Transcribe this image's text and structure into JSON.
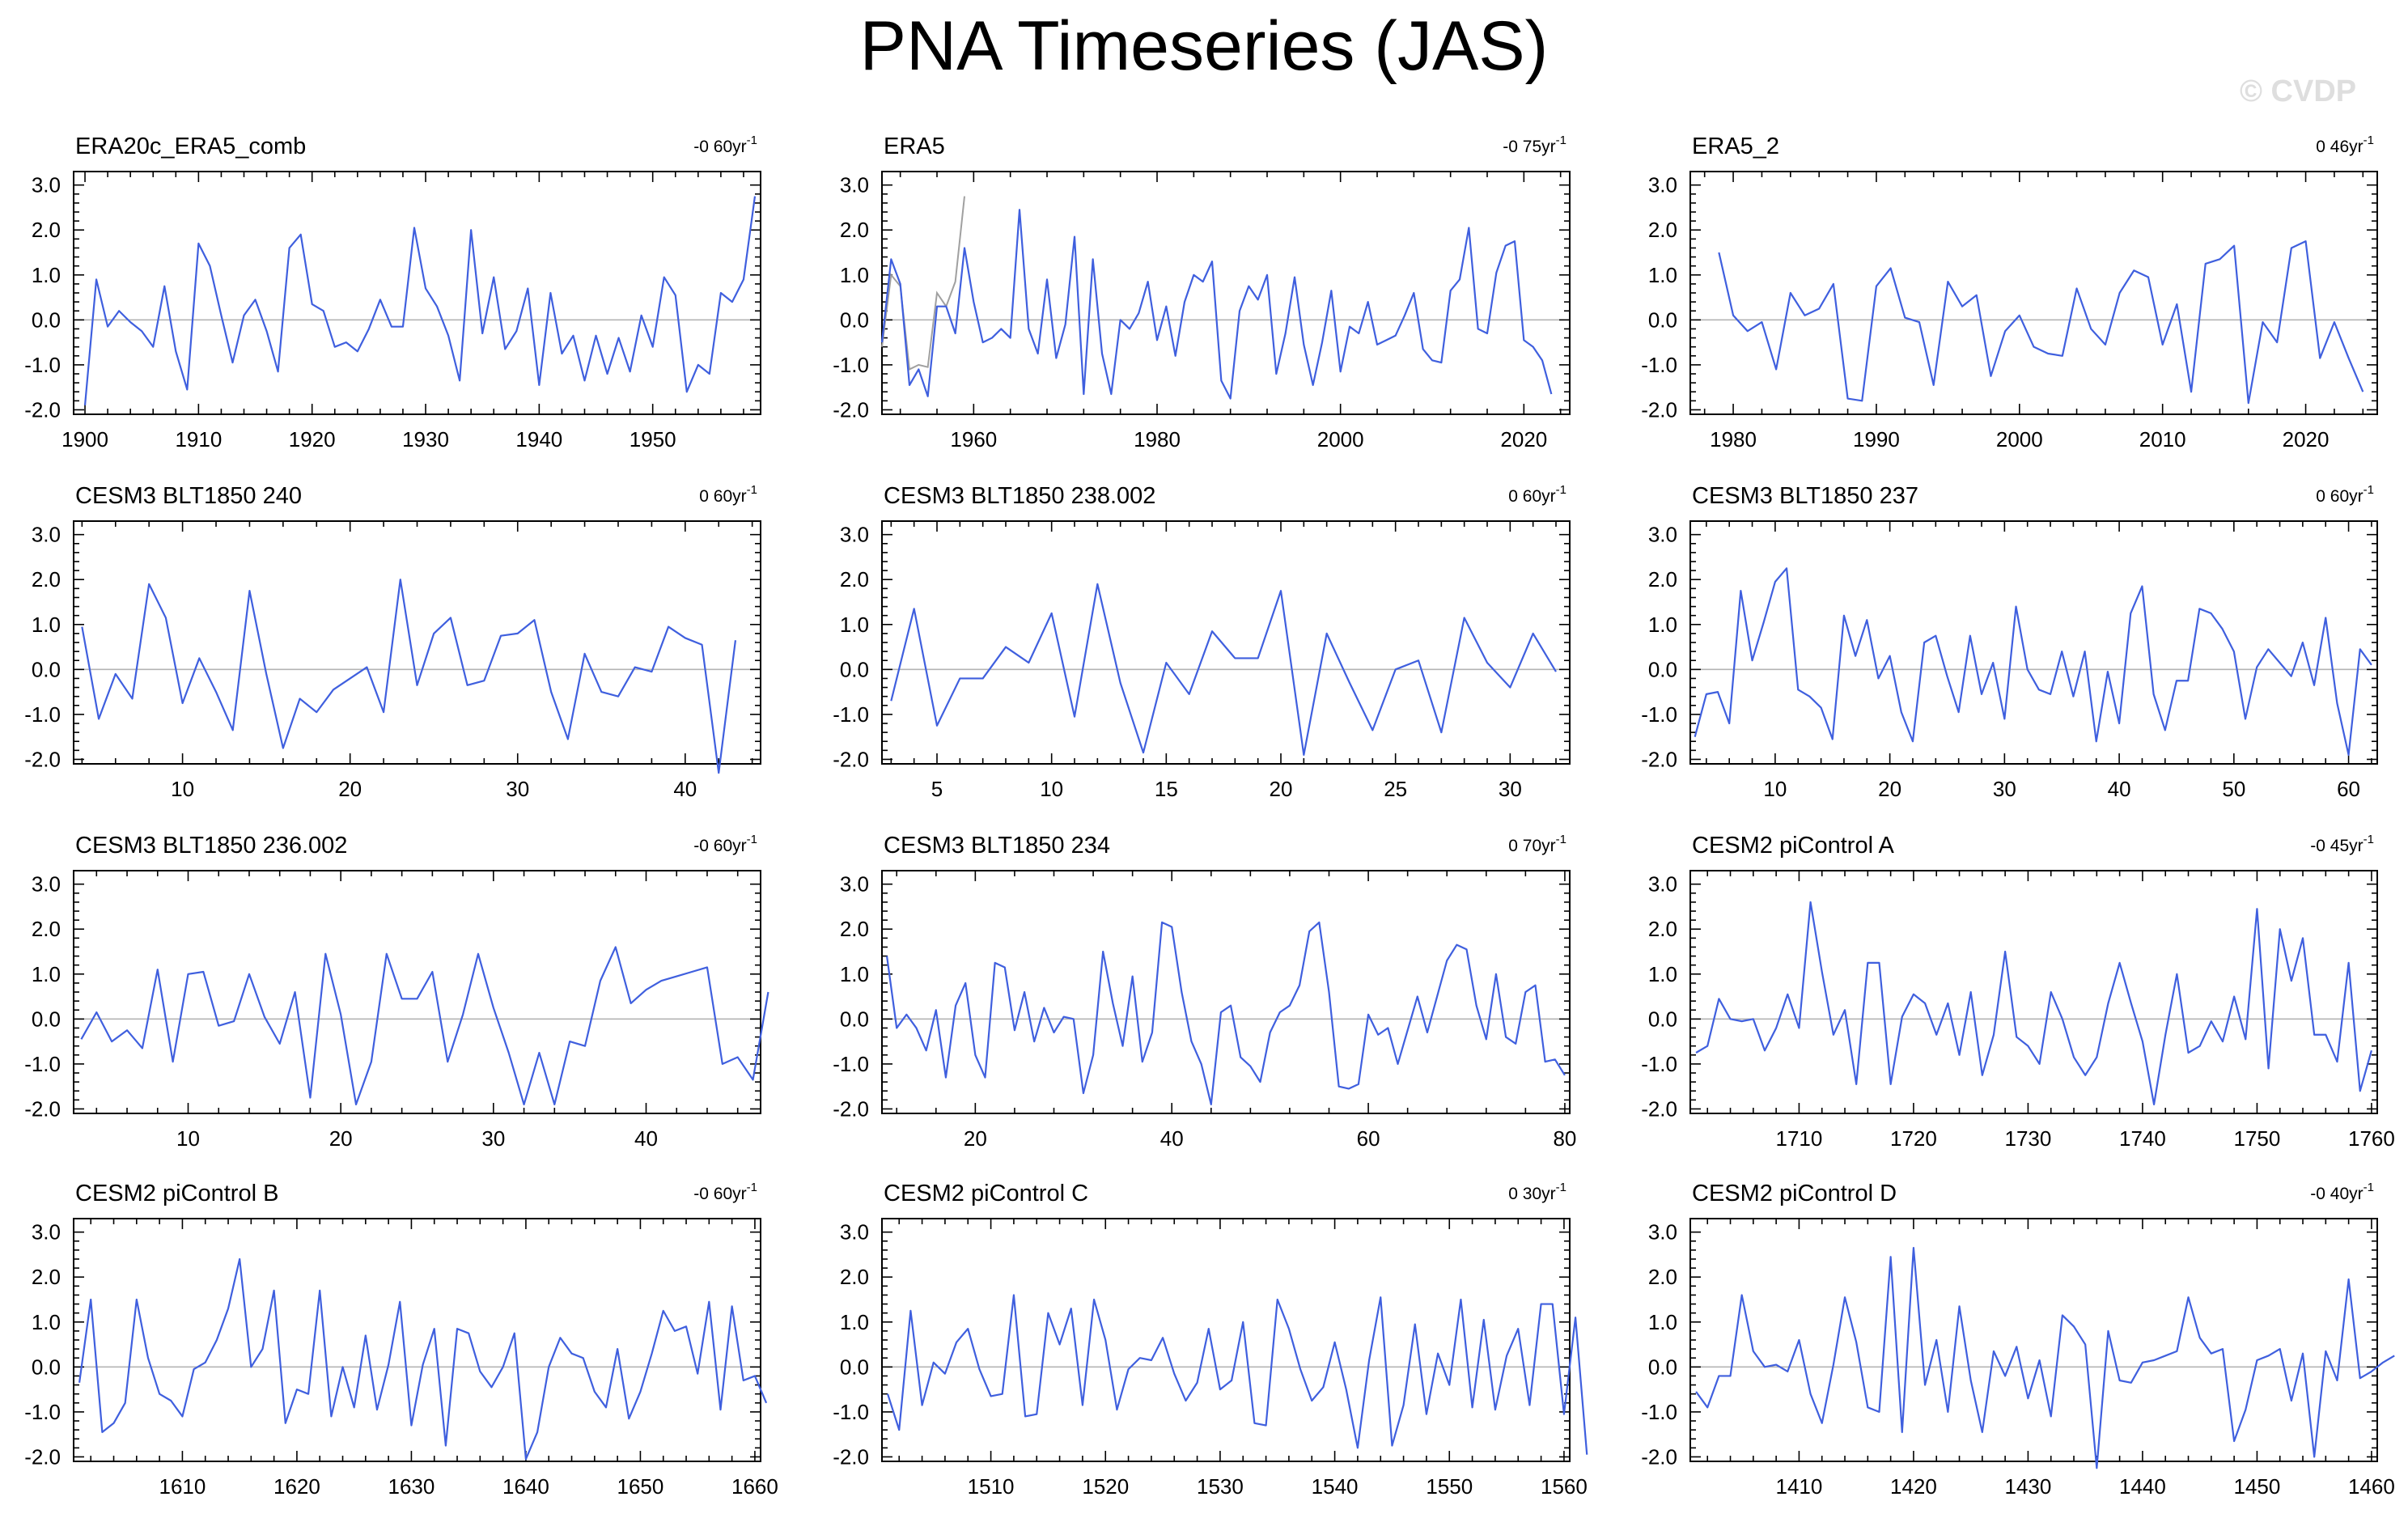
{
  "title": "PNA Timeseries (JAS)",
  "watermark": "© CVDP",
  "colors": {
    "line": "#3f5fde",
    "obs_gray": "#a0a0a0",
    "zero_line": "#b4b4b4",
    "axes": "#000000"
  },
  "chart_data": [
    {
      "type": "line",
      "title": "ERA20c_ERA5_comb",
      "trend": "-0 60yr",
      "trend_sup": "-1",
      "xticks": [
        1900,
        1910,
        1920,
        1930,
        1940,
        1950
      ],
      "xlim": [
        1899,
        1959.5
      ],
      "ylim": [
        -2.1,
        3.3
      ],
      "yticks": [
        "3.0",
        "2.0",
        "1.0",
        "0.0",
        "-1.0",
        "-2.0"
      ],
      "x_start": 1900,
      "values": [
        -1.9,
        0.9,
        -0.15,
        0.2,
        -0.05,
        -0.25,
        -0.6,
        0.75,
        -0.7,
        -1.55,
        1.7,
        1.2,
        0.1,
        -0.95,
        0.1,
        0.45,
        -0.25,
        -1.15,
        1.6,
        1.9,
        0.35,
        0.2,
        -0.6,
        -0.5,
        -0.7,
        -0.2,
        0.45,
        -0.15,
        -0.15,
        2.05,
        0.7,
        0.3,
        -0.35,
        -1.35,
        2.0,
        -0.3,
        0.95,
        -0.65,
        -0.25,
        0.7,
        -1.45,
        0.6,
        -0.75,
        -0.35,
        -1.35,
        -0.35,
        -1.2,
        -0.4,
        -1.15,
        0.1,
        -0.6,
        0.95,
        0.55,
        -1.6,
        -1.0,
        -1.2,
        0.6,
        0.4,
        0.9,
        2.75
      ]
    },
    {
      "type": "line",
      "title": "ERA5",
      "trend": "-0 75yr",
      "trend_sup": "-1",
      "xticks": [
        1960,
        1980,
        2000,
        2020
      ],
      "xlim": [
        1950,
        2025
      ],
      "ylim": [
        -2.1,
        3.3
      ],
      "yticks": [
        "3.0",
        "2.0",
        "1.0",
        "0.0",
        "-1.0",
        "-2.0"
      ],
      "x_start": 1950,
      "values": [
        -0.5,
        1.35,
        0.8,
        -1.45,
        -1.1,
        -1.7,
        0.3,
        0.3,
        -0.3,
        1.6,
        0.4,
        -0.5,
        -0.4,
        -0.2,
        -0.4,
        2.45,
        -0.2,
        -0.75,
        0.9,
        -0.85,
        -0.1,
        1.85,
        -1.65,
        1.35,
        -0.75,
        -1.65,
        0.0,
        -0.2,
        0.15,
        0.85,
        -0.45,
        0.3,
        -0.8,
        0.4,
        1.0,
        0.85,
        1.3,
        -1.35,
        -1.75,
        0.2,
        0.75,
        0.45,
        1.0,
        -1.2,
        -0.3,
        0.95,
        -0.55,
        -1.45,
        -0.5,
        0.65,
        -1.15,
        -0.15,
        -0.3,
        0.4,
        -0.55,
        -0.45,
        -0.35,
        0.1,
        0.6,
        -0.65,
        -0.9,
        -0.95,
        0.65,
        0.9,
        2.05,
        -0.2,
        -0.3,
        1.05,
        1.65,
        1.75,
        -0.45,
        -0.6,
        -0.9,
        -1.65
      ],
      "series2": {
        "x_start": 1950,
        "values": [
          -0.6,
          1.0,
          0.75,
          -1.1,
          -1.0,
          -1.05,
          0.6,
          0.3,
          0.85,
          2.75
        ]
      }
    },
    {
      "type": "line",
      "title": "ERA5_2",
      "trend": "0 46yr",
      "trend_sup": "-1",
      "xticks": [
        1980,
        1990,
        2000,
        2010,
        2020
      ],
      "xlim": [
        1977,
        2025
      ],
      "ylim": [
        -2.1,
        3.3
      ],
      "yticks": [
        "3.0",
        "2.0",
        "1.0",
        "0.0",
        "-1.0",
        "-2.0"
      ],
      "x_start": 1979,
      "values": [
        1.5,
        0.1,
        -0.25,
        -0.05,
        -1.1,
        0.6,
        0.1,
        0.25,
        0.8,
        -1.75,
        -1.8,
        0.75,
        1.15,
        0.05,
        -0.05,
        -1.45,
        0.85,
        0.3,
        0.55,
        -1.25,
        -0.25,
        0.1,
        -0.6,
        -0.75,
        -0.8,
        0.7,
        -0.2,
        -0.55,
        0.6,
        1.1,
        0.95,
        -0.55,
        0.35,
        -1.6,
        1.25,
        1.35,
        1.65,
        -1.85,
        -0.05,
        -0.5,
        1.6,
        1.75,
        -0.85,
        -0.05,
        -0.85,
        -1.6
      ]
    },
    {
      "type": "line",
      "title": "CESM3 BLT1850 240",
      "trend": "0 60yr",
      "trend_sup": "-1",
      "xticks": [
        10,
        20,
        30,
        40
      ],
      "xlim": [
        3.5,
        44.5
      ],
      "ylim": [
        -2.1,
        3.3
      ],
      "yticks": [
        "3.0",
        "2.0",
        "1.0",
        "0.0",
        "-1.0",
        "-2.0"
      ],
      "x_start": 4,
      "values": [
        0.95,
        -1.1,
        -0.1,
        -0.65,
        1.9,
        1.15,
        -0.75,
        0.25,
        -0.5,
        -1.35,
        1.75,
        -0.1,
        -1.75,
        -0.65,
        -0.95,
        -0.45,
        -0.2,
        0.05,
        -0.95,
        2.0,
        -0.35,
        0.8,
        1.15,
        -0.35,
        -0.25,
        0.75,
        0.8,
        1.1,
        -0.5,
        -1.55,
        0.35,
        -0.5,
        -0.6,
        0.05,
        -0.05,
        0.95,
        0.7,
        0.55,
        -2.3,
        0.65
      ]
    },
    {
      "type": "line",
      "title": "CESM3 BLT1850 238.002",
      "trend": "0 60yr",
      "trend_sup": "-1",
      "xticks": [
        5,
        10,
        15,
        20,
        25,
        30
      ],
      "xlim": [
        2.6,
        32.6
      ],
      "ylim": [
        -2.1,
        3.3
      ],
      "yticks": [
        "3.0",
        "2.0",
        "1.0",
        "0.0",
        "-1.0",
        "-2.0"
      ],
      "x_start": 3,
      "values": [
        -0.7,
        1.35,
        -1.25,
        -0.2,
        -0.2,
        0.5,
        0.15,
        1.25,
        -1.05,
        1.9,
        -0.3,
        -1.85,
        0.15,
        -0.55,
        0.85,
        0.25,
        0.25,
        1.75,
        -1.9,
        0.8,
        -0.3,
        -1.35,
        0.0,
        0.2,
        -1.4,
        1.15,
        0.15,
        -0.4,
        0.8,
        -0.05
      ]
    },
    {
      "type": "line",
      "title": "CESM3 BLT1850 237",
      "trend": "0 60yr",
      "trend_sup": "-1",
      "xticks": [
        10,
        20,
        30,
        40,
        50,
        60
      ],
      "xlim": [
        2.6,
        62.5
      ],
      "ylim": [
        -2.1,
        3.3
      ],
      "yticks": [
        "3.0",
        "2.0",
        "1.0",
        "0.0",
        "-1.0",
        "-2.0"
      ],
      "x_start": 3,
      "values": [
        -1.5,
        -0.55,
        -0.5,
        -1.2,
        1.75,
        0.2,
        1.05,
        1.95,
        2.25,
        -0.45,
        -0.6,
        -0.85,
        -1.55,
        1.2,
        0.3,
        1.1,
        -0.2,
        0.3,
        -0.95,
        -1.6,
        0.6,
        0.75,
        -0.15,
        -0.95,
        0.75,
        -0.55,
        0.15,
        -1.1,
        1.4,
        0.0,
        -0.45,
        -0.55,
        0.4,
        -0.6,
        0.4,
        -1.6,
        -0.05,
        -1.2,
        1.25,
        1.85,
        -0.55,
        -1.35,
        -0.25,
        -0.25,
        1.35,
        1.25,
        0.9,
        0.4,
        -1.1,
        0.05,
        0.45,
        0.15,
        -0.15,
        0.6,
        -0.35,
        1.15,
        -0.75,
        -1.9,
        0.45,
        0.1
      ]
    },
    {
      "type": "line",
      "title": "CESM3 BLT1850 236.002",
      "trend": "-0 60yr",
      "trend_sup": "-1",
      "xticks": [
        10,
        20,
        30,
        40
      ],
      "xlim": [
        2.5,
        47.5
      ],
      "ylim": [
        -2.1,
        3.3
      ],
      "yticks": [
        "3.0",
        "2.0",
        "1.0",
        "0.0",
        "-1.0",
        "-2.0"
      ],
      "x_start": 3,
      "values": [
        -0.45,
        0.15,
        -0.5,
        -0.25,
        -0.65,
        1.1,
        -0.95,
        1.0,
        1.05,
        -0.15,
        -0.05,
        1.0,
        0.05,
        -0.55,
        0.6,
        -1.75,
        1.45,
        0.1,
        -1.9,
        -0.95,
        1.45,
        0.45,
        0.45,
        1.05,
        -0.95,
        0.1,
        1.45,
        0.25,
        -0.75,
        -1.9,
        -0.75,
        -1.9,
        -0.5,
        -0.6,
        0.85,
        1.6,
        0.35,
        0.65,
        0.85,
        0.95,
        1.05,
        1.15,
        -1.0,
        -0.85,
        -1.35,
        0.6
      ]
    },
    {
      "type": "line",
      "title": "CESM3 BLT1850 234",
      "trend": "0 70yr",
      "trend_sup": "-1",
      "xticks": [
        20,
        40,
        60,
        80
      ],
      "xlim": [
        10.5,
        80.5
      ],
      "ylim": [
        -2.1,
        3.3
      ],
      "yticks": [
        "3.0",
        "2.0",
        "1.0",
        "0.0",
        "-1.0",
        "-2.0"
      ],
      "x_start": 11,
      "values": [
        1.4,
        -0.2,
        0.1,
        -0.2,
        -0.7,
        0.2,
        -1.3,
        0.3,
        0.8,
        -0.8,
        -1.3,
        1.25,
        1.15,
        -0.25,
        0.6,
        -0.5,
        0.25,
        -0.3,
        0.05,
        0.0,
        -1.65,
        -0.8,
        1.5,
        0.35,
        -0.6,
        0.95,
        -0.95,
        -0.3,
        2.15,
        2.05,
        0.6,
        -0.5,
        -1.0,
        -1.9,
        0.15,
        0.3,
        -0.85,
        -1.05,
        -1.4,
        -0.3,
        0.15,
        0.3,
        0.75,
        1.95,
        2.15,
        0.6,
        -1.5,
        -1.55,
        -1.45,
        0.1,
        -0.35,
        -0.2,
        -1.0,
        -0.25,
        0.5,
        -0.3,
        0.5,
        1.3,
        1.65,
        1.55,
        0.3,
        -0.45,
        1.0,
        -0.4,
        -0.55,
        0.6,
        0.75,
        -0.95,
        -0.9,
        -1.25
      ]
    },
    {
      "type": "line",
      "title": "CESM2 piControl A",
      "trend": "-0 45yr",
      "trend_sup": "-1",
      "xticks": [
        1710,
        1720,
        1730,
        1740,
        1750,
        1760
      ],
      "xlim": [
        1700.5,
        1760.5
      ],
      "ylim": [
        -2.1,
        3.3
      ],
      "yticks": [
        "3.0",
        "2.0",
        "1.0",
        "0.0",
        "-1.0",
        "-2.0"
      ],
      "x_start": 1701,
      "values": [
        -0.75,
        -0.6,
        0.45,
        0.0,
        -0.05,
        0.0,
        -0.7,
        -0.2,
        0.55,
        -0.2,
        2.6,
        1.05,
        -0.35,
        0.2,
        -1.45,
        1.25,
        1.25,
        -1.45,
        0.05,
        0.55,
        0.35,
        -0.35,
        0.35,
        -0.8,
        0.6,
        -1.25,
        -0.35,
        1.5,
        -0.4,
        -0.6,
        -1.0,
        0.6,
        0.0,
        -0.85,
        -1.25,
        -0.85,
        0.35,
        1.25,
        0.35,
        -0.5,
        -1.9,
        -0.35,
        1.0,
        -0.75,
        -0.6,
        -0.05,
        -0.5,
        0.5,
        -0.45,
        2.45,
        -1.1,
        2.0,
        0.85,
        1.8,
        -0.35,
        -0.35,
        -0.95,
        1.25,
        -1.6,
        -0.7
      ]
    },
    {
      "type": "line",
      "title": "CESM2 piControl B",
      "trend": "-0 60yr",
      "trend_sup": "-1",
      "xticks": [
        1610,
        1620,
        1630,
        1640,
        1650,
        1660
      ],
      "xlim": [
        1600.5,
        1660.5
      ],
      "ylim": [
        -2.1,
        3.3
      ],
      "yticks": [
        "3.0",
        "2.0",
        "1.0",
        "0.0",
        "-1.0",
        "-2.0"
      ],
      "x_start": 1601,
      "values": [
        -0.35,
        1.5,
        -1.45,
        -1.25,
        -0.8,
        1.5,
        0.2,
        -0.6,
        -0.75,
        -1.1,
        -0.05,
        0.1,
        0.6,
        1.3,
        2.4,
        0.0,
        0.4,
        1.7,
        -1.25,
        -0.5,
        -0.6,
        1.7,
        -1.1,
        0.0,
        -0.9,
        0.7,
        -0.95,
        0.05,
        1.45,
        -1.3,
        0.05,
        0.85,
        -1.75,
        0.85,
        0.75,
        -0.1,
        -0.45,
        0.0,
        0.75,
        -2.05,
        -1.45,
        0.0,
        0.65,
        0.3,
        0.2,
        -0.55,
        -0.9,
        0.4,
        -1.15,
        -0.55,
        0.3,
        1.25,
        0.8,
        0.9,
        -0.15,
        1.45,
        -0.95,
        1.35,
        -0.3,
        -0.2,
        -0.8
      ]
    },
    {
      "type": "line",
      "title": "CESM2 piControl C",
      "trend": "0 30yr",
      "trend_sup": "-1",
      "xticks": [
        1510,
        1520,
        1530,
        1540,
        1550,
        1560
      ],
      "xlim": [
        1500.5,
        1560.5
      ],
      "ylim": [
        -2.1,
        3.3
      ],
      "yticks": [
        "3.0",
        "2.0",
        "1.0",
        "0.0",
        "-1.0",
        "-2.0"
      ],
      "x_start": 1501,
      "values": [
        -0.6,
        -1.4,
        1.25,
        -0.85,
        0.1,
        -0.15,
        0.55,
        0.85,
        -0.05,
        -0.65,
        -0.6,
        1.6,
        -1.1,
        -1.05,
        1.2,
        0.5,
        1.3,
        -0.85,
        1.5,
        0.6,
        -0.95,
        -0.05,
        0.2,
        0.15,
        0.65,
        -0.15,
        -0.75,
        -0.35,
        0.85,
        -0.5,
        -0.3,
        1.0,
        -1.25,
        -1.3,
        1.5,
        0.85,
        -0.05,
        -0.75,
        -0.45,
        0.55,
        -0.5,
        -1.8,
        0.15,
        1.55,
        -1.75,
        -0.85,
        0.95,
        -1.05,
        0.3,
        -0.4,
        1.5,
        -0.9,
        1.05,
        -0.95,
        0.25,
        0.85,
        -0.85,
        1.4,
        1.4,
        -1.05,
        1.1,
        -1.95
      ]
    },
    {
      "type": "line",
      "title": "CESM2 piControl D",
      "trend": "-0 40yr",
      "trend_sup": "-1",
      "xticks": [
        1410,
        1420,
        1430,
        1440,
        1450,
        1460
      ],
      "xlim": [
        1400.5,
        1460.5
      ],
      "ylim": [
        -2.1,
        3.3
      ],
      "yticks": [
        "3.0",
        "2.0",
        "1.0",
        "0.0",
        "-1.0",
        "-2.0"
      ],
      "x_start": 1401,
      "values": [
        -0.55,
        -0.9,
        -0.2,
        -0.2,
        1.6,
        0.35,
        0.0,
        0.05,
        -0.1,
        0.6,
        -0.6,
        -1.25,
        0.05,
        1.55,
        0.55,
        -0.9,
        -1.0,
        2.45,
        -1.45,
        2.65,
        -0.4,
        0.6,
        -1.0,
        1.35,
        -0.3,
        -1.45,
        0.35,
        -0.2,
        0.45,
        -0.7,
        0.15,
        -1.1,
        1.15,
        0.9,
        0.5,
        -2.25,
        0.8,
        -0.3,
        -0.35,
        0.1,
        0.15,
        0.25,
        0.35,
        1.55,
        0.65,
        0.3,
        0.4,
        -1.65,
        -0.95,
        0.15,
        0.25,
        0.4,
        -0.75,
        0.3,
        -2.0,
        0.35,
        -0.3,
        1.95,
        -0.25,
        -0.1,
        0.1,
        0.25
      ]
    }
  ]
}
